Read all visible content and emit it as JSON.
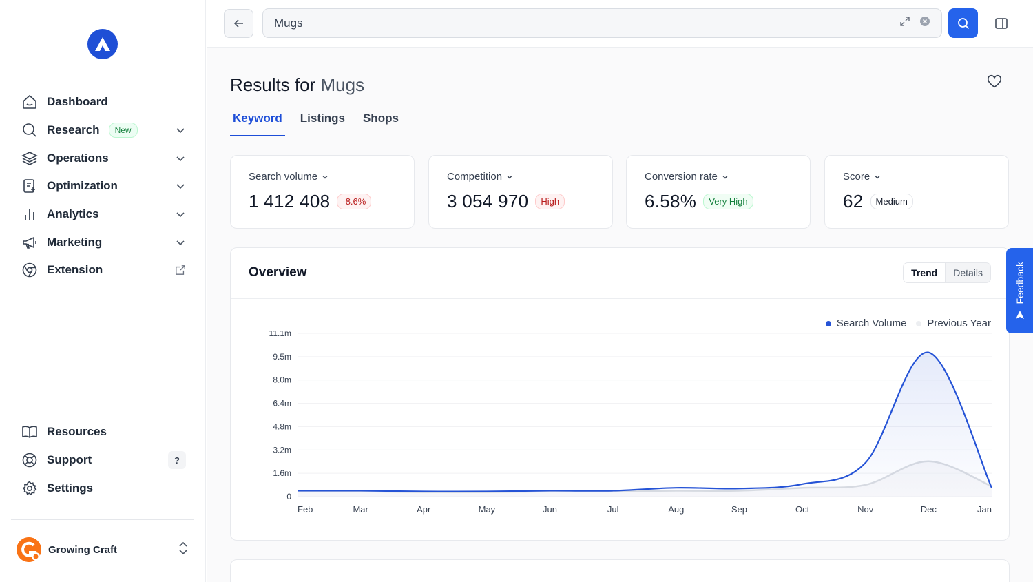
{
  "sidebar": {
    "items": [
      {
        "label": "Dashboard"
      },
      {
        "label": "Research",
        "badge": "New"
      },
      {
        "label": "Operations"
      },
      {
        "label": "Optimization"
      },
      {
        "label": "Analytics"
      },
      {
        "label": "Marketing"
      },
      {
        "label": "Extension"
      }
    ],
    "bottom": [
      {
        "label": "Resources"
      },
      {
        "label": "Support",
        "badge": "?"
      },
      {
        "label": "Settings"
      }
    ],
    "account": {
      "name": "Growing Craft"
    }
  },
  "topbar": {
    "search_value": "Mugs"
  },
  "main": {
    "title_prefix": "Results for ",
    "title_keyword": "Mugs",
    "tabs": [
      {
        "label": "Keyword"
      },
      {
        "label": "Listings"
      },
      {
        "label": "Shops"
      }
    ],
    "stats": [
      {
        "label": "Search volume",
        "value": "1 412 408",
        "badge": "-8.6%"
      },
      {
        "label": "Competition",
        "value": "3 054 970",
        "badge": "High"
      },
      {
        "label": "Conversion rate",
        "value": "6.58%",
        "badge": "Very High"
      },
      {
        "label": "Score",
        "value": "62",
        "badge": "Medium"
      }
    ],
    "overview": {
      "title": "Overview",
      "toggle": [
        "Trend",
        "Details"
      ]
    }
  },
  "feedback": {
    "label": "Feedback"
  },
  "colors": {
    "accent": "#2563eb",
    "series_main": "#2553d6",
    "series_prev": "#d9dce1"
  },
  "chart_data": {
    "type": "area",
    "categories": [
      "Feb",
      "Mar",
      "Apr",
      "May",
      "Jun",
      "Jul",
      "Aug",
      "Sep",
      "Oct",
      "Nov",
      "Dec",
      "Jan"
    ],
    "yticks": [
      "0",
      "1.6m",
      "3.2m",
      "4.8m",
      "6.4m",
      "8.0m",
      "9.5m",
      "11.1m"
    ],
    "ylim": [
      0,
      11.1
    ],
    "series": [
      {
        "name": "Search Volume",
        "values": [
          0.4,
          0.4,
          0.35,
          0.35,
          0.4,
          0.4,
          0.6,
          0.55,
          0.85,
          2.3,
          9.8,
          0.6
        ]
      },
      {
        "name": "Previous Year",
        "values": [
          0.35,
          0.35,
          0.3,
          0.3,
          0.35,
          0.35,
          0.4,
          0.4,
          0.6,
          0.8,
          2.4,
          0.7
        ]
      }
    ]
  }
}
